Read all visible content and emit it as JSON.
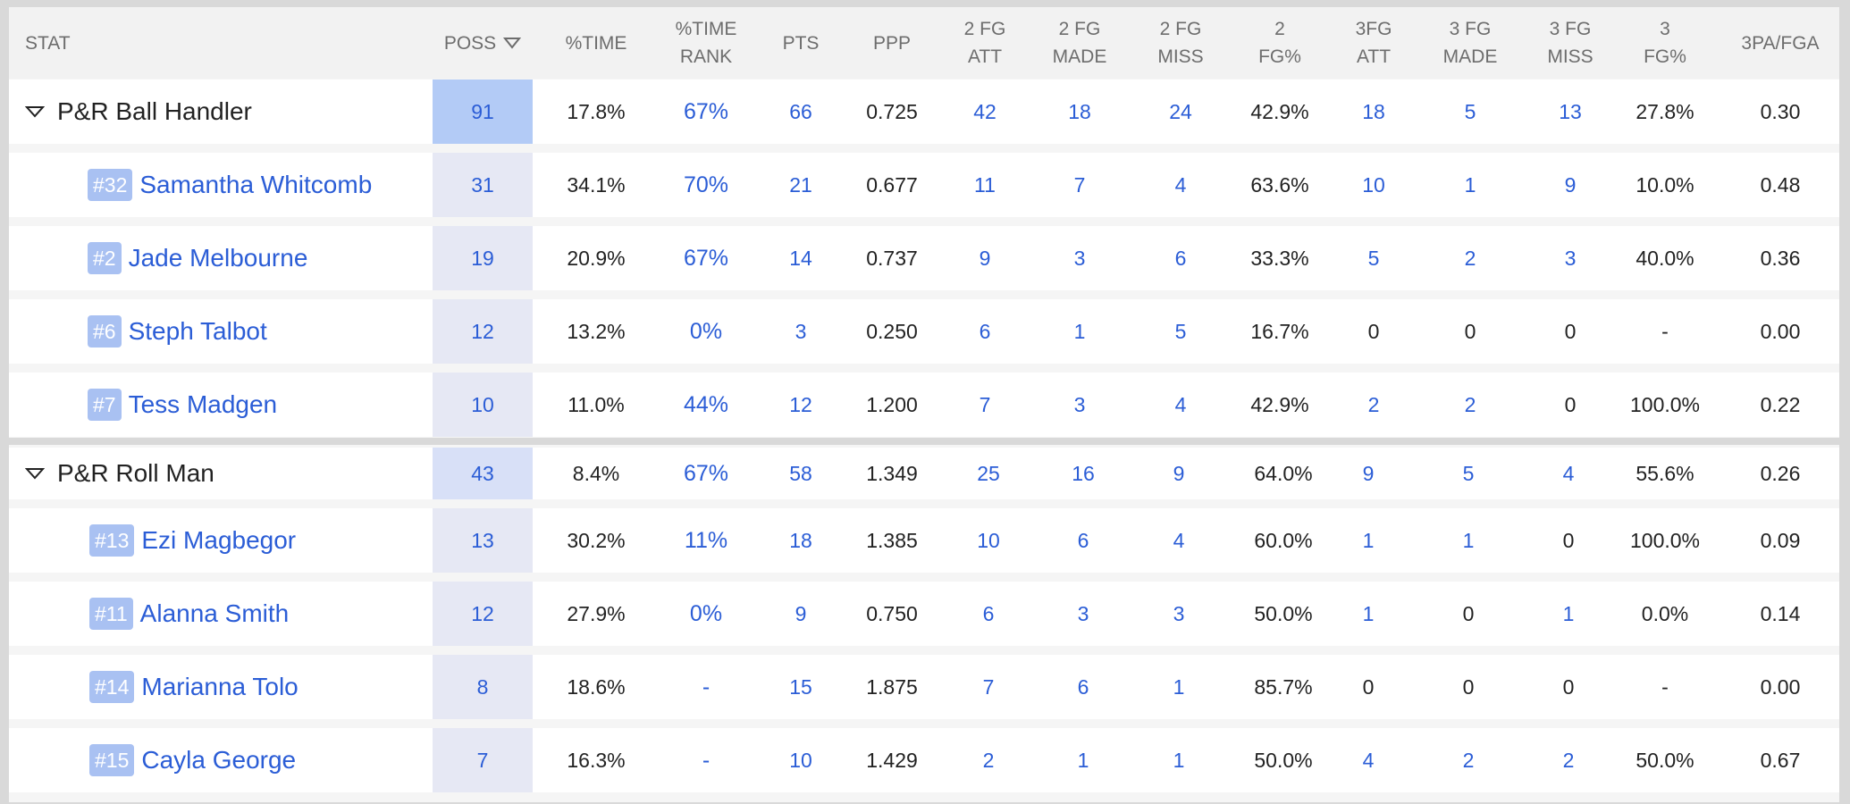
{
  "header": {
    "stat": "STAT",
    "poss": "POSS",
    "pct_time": "%TIME",
    "pct_time_rank_1": "%TIME",
    "pct_time_rank_2": "RANK",
    "pts": "PTS",
    "ppp": "PPP",
    "fg2_att_1": "2 FG",
    "fg2_att_2": "ATT",
    "fg2_made_1": "2 FG",
    "fg2_made_2": "MADE",
    "fg2_miss_1": "2 FG",
    "fg2_miss_2": "MISS",
    "fg2_pct_1": "2",
    "fg2_pct_2": "FG%",
    "fg3_att_1": "3FG",
    "fg3_att_2": "ATT",
    "fg3_made_1": "3 FG",
    "fg3_made_2": "MADE",
    "fg3_miss_1": "3 FG",
    "fg3_miss_2": "MISS",
    "fg3_pct_1": "3",
    "fg3_pct_2": "FG%",
    "pa3_fga": "3PA/FGA"
  },
  "groups": [
    {
      "name": "P&R Ball Handler",
      "poss": "91",
      "time": "17.8%",
      "rank": "67%",
      "pts": "66",
      "ppp": "0.725",
      "fg2_att": "42",
      "fg2_made": "18",
      "fg2_miss": "24",
      "fg2_pct": "42.9%",
      "fg3_att": "18",
      "fg3_made": "5",
      "fg3_miss": "13",
      "fg3_pct": "27.8%",
      "pa3_fga": "0.30",
      "players": [
        {
          "num": "#32",
          "name": "Samantha Whitcomb",
          "poss": "31",
          "time": "34.1%",
          "rank": "70%",
          "pts": "21",
          "ppp": "0.677",
          "fg2_att": "11",
          "fg2_made": "7",
          "fg2_miss": "4",
          "fg2_pct": "63.6%",
          "fg3_att": "10",
          "fg3_made": "1",
          "fg3_miss": "9",
          "fg3_pct": "10.0%",
          "pa3_fga": "0.48"
        },
        {
          "num": "#2",
          "name": "Jade Melbourne",
          "poss": "19",
          "time": "20.9%",
          "rank": "67%",
          "pts": "14",
          "ppp": "0.737",
          "fg2_att": "9",
          "fg2_made": "3",
          "fg2_miss": "6",
          "fg2_pct": "33.3%",
          "fg3_att": "5",
          "fg3_made": "2",
          "fg3_miss": "3",
          "fg3_pct": "40.0%",
          "pa3_fga": "0.36"
        },
        {
          "num": "#6",
          "name": "Steph Talbot",
          "poss": "12",
          "time": "13.2%",
          "rank": "0%",
          "pts": "3",
          "ppp": "0.250",
          "fg2_att": "6",
          "fg2_made": "1",
          "fg2_miss": "5",
          "fg2_pct": "16.7%",
          "fg3_att": "0",
          "fg3_made": "0",
          "fg3_miss": "0",
          "fg3_pct": "-",
          "pa3_fga": "0.00"
        },
        {
          "num": "#7",
          "name": "Tess Madgen",
          "poss": "10",
          "time": "11.0%",
          "rank": "44%",
          "pts": "12",
          "ppp": "1.200",
          "fg2_att": "7",
          "fg2_made": "3",
          "fg2_miss": "4",
          "fg2_pct": "42.9%",
          "fg3_att": "2",
          "fg3_made": "2",
          "fg3_miss": "0",
          "fg3_pct": "100.0%",
          "pa3_fga": "0.22"
        }
      ]
    },
    {
      "name": "P&R Roll Man",
      "poss": "43",
      "time": "8.4%",
      "rank": "67%",
      "pts": "58",
      "ppp": "1.349",
      "fg2_att": "25",
      "fg2_made": "16",
      "fg2_miss": "9",
      "fg2_pct": "64.0%",
      "fg3_att": "9",
      "fg3_made": "5",
      "fg3_miss": "4",
      "fg3_pct": "55.6%",
      "pa3_fga": "0.26",
      "players": [
        {
          "num": "#13",
          "name": "Ezi Magbegor",
          "poss": "13",
          "time": "30.2%",
          "rank": "11%",
          "pts": "18",
          "ppp": "1.385",
          "fg2_att": "10",
          "fg2_made": "6",
          "fg2_miss": "4",
          "fg2_pct": "60.0%",
          "fg3_att": "1",
          "fg3_made": "1",
          "fg3_miss": "0",
          "fg3_pct": "100.0%",
          "pa3_fga": "0.09"
        },
        {
          "num": "#11",
          "name": "Alanna Smith",
          "poss": "12",
          "time": "27.9%",
          "rank": "0%",
          "pts": "9",
          "ppp": "0.750",
          "fg2_att": "6",
          "fg2_made": "3",
          "fg2_miss": "3",
          "fg2_pct": "50.0%",
          "fg3_att": "1",
          "fg3_made": "0",
          "fg3_miss": "1",
          "fg3_pct": "0.0%",
          "pa3_fga": "0.14"
        },
        {
          "num": "#14",
          "name": "Marianna Tolo",
          "poss": "8",
          "time": "18.6%",
          "rank": "-",
          "pts": "15",
          "ppp": "1.875",
          "fg2_att": "7",
          "fg2_made": "6",
          "fg2_miss": "1",
          "fg2_pct": "85.7%",
          "fg3_att": "0",
          "fg3_made": "0",
          "fg3_miss": "0",
          "fg3_pct": "-",
          "pa3_fga": "0.00"
        },
        {
          "num": "#15",
          "name": "Cayla George",
          "poss": "7",
          "time": "16.3%",
          "rank": "-",
          "pts": "10",
          "ppp": "1.429",
          "fg2_att": "2",
          "fg2_made": "1",
          "fg2_miss": "1",
          "fg2_pct": "50.0%",
          "fg3_att": "4",
          "fg3_made": "2",
          "fg3_miss": "2",
          "fg3_pct": "50.0%",
          "pa3_fga": "0.67"
        }
      ]
    }
  ],
  "colors": {
    "link": "#2b5dd6",
    "header_text": "#6d6d6d",
    "poss_group_1": "#b3cbf6",
    "poss_group_2": "#d8e0f7",
    "poss_player": "#e6e8f4",
    "badge": "#a9c1f2"
  },
  "icons": {
    "sort": "triangle-down-outline-icon",
    "collapse": "triangle-down-outline-icon"
  }
}
